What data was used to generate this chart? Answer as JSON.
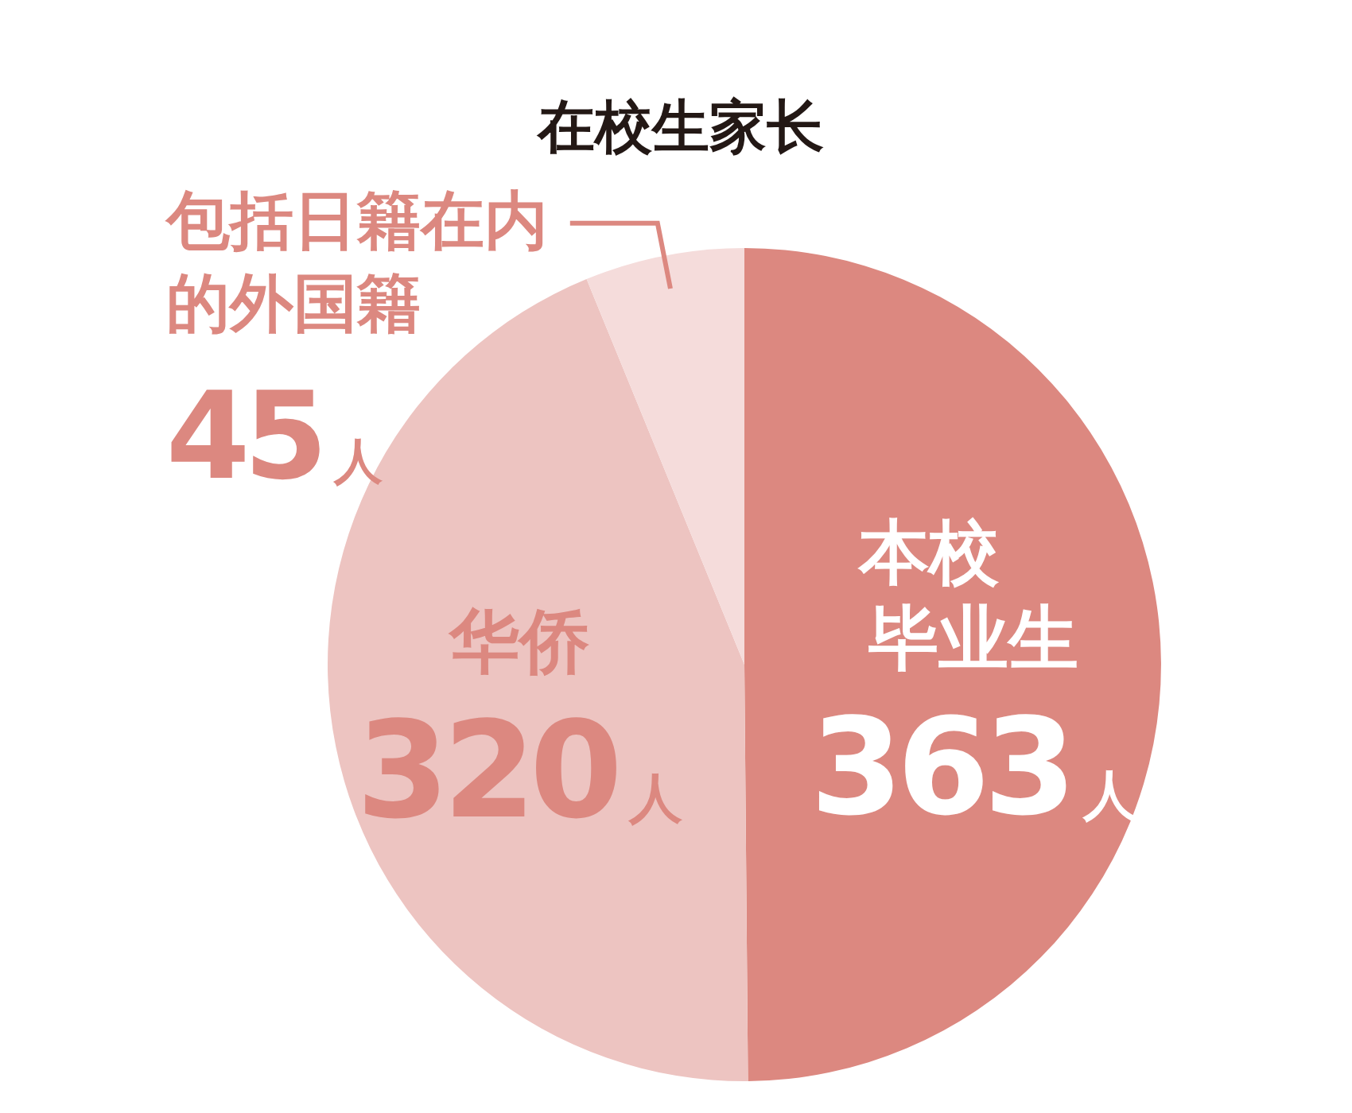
{
  "chart_data": {
    "type": "pie",
    "title": "在校生家长",
    "categories": [
      "本校毕业生",
      "华侨",
      "包括日籍在内的外国籍"
    ],
    "values": [
      363,
      320,
      45
    ],
    "colors": [
      "#dc8880",
      "#edc4c1",
      "#f5dcdb"
    ],
    "value_labels": [
      "363人",
      "320人",
      "45人"
    ]
  }
}
